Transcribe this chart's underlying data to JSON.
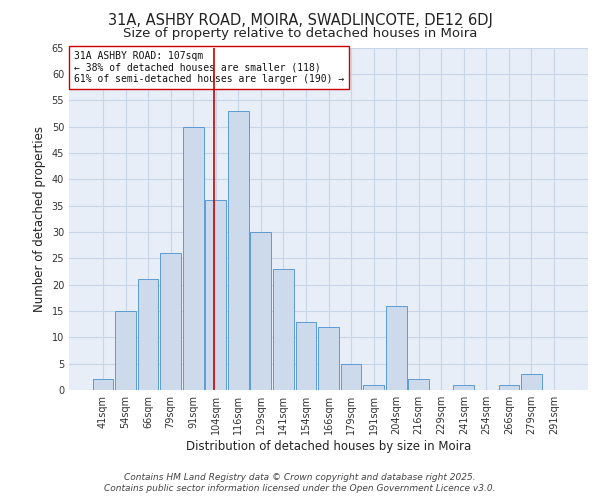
{
  "title1": "31A, ASHBY ROAD, MOIRA, SWADLINCOTE, DE12 6DJ",
  "title2": "Size of property relative to detached houses in Moira",
  "xlabel": "Distribution of detached houses by size in Moira",
  "ylabel": "Number of detached properties",
  "categories": [
    "41sqm",
    "54sqm",
    "66sqm",
    "79sqm",
    "91sqm",
    "104sqm",
    "116sqm",
    "129sqm",
    "141sqm",
    "154sqm",
    "166sqm",
    "179sqm",
    "191sqm",
    "204sqm",
    "216sqm",
    "229sqm",
    "241sqm",
    "254sqm",
    "266sqm",
    "279sqm",
    "291sqm"
  ],
  "values": [
    2,
    15,
    21,
    26,
    50,
    36,
    53,
    30,
    23,
    13,
    12,
    5,
    1,
    16,
    2,
    0,
    1,
    0,
    1,
    3,
    0
  ],
  "bar_color": "#cddaeb",
  "bar_edge_color": "#5b9bd5",
  "grid_color": "#c8d4e8",
  "background_color": "#e8eef7",
  "vline_color": "#cc0000",
  "vline_x_index": 5,
  "annotation_text": "31A ASHBY ROAD: 107sqm\n← 38% of detached houses are smaller (118)\n61% of semi-detached houses are larger (190) →",
  "annotation_box_color": "#ffffff",
  "annotation_box_edge": "#cc0000",
  "footnote_line1": "Contains HM Land Registry data © Crown copyright and database right 2025.",
  "footnote_line2": "Contains public sector information licensed under the Open Government Licence v3.0.",
  "ylim": [
    0,
    65
  ],
  "yticks": [
    0,
    5,
    10,
    15,
    20,
    25,
    30,
    35,
    40,
    45,
    50,
    55,
    60,
    65
  ],
  "title_fontsize": 10.5,
  "subtitle_fontsize": 9.5,
  "tick_fontsize": 7,
  "label_fontsize": 8.5,
  "footnote_fontsize": 6.5,
  "annot_fontsize": 7
}
